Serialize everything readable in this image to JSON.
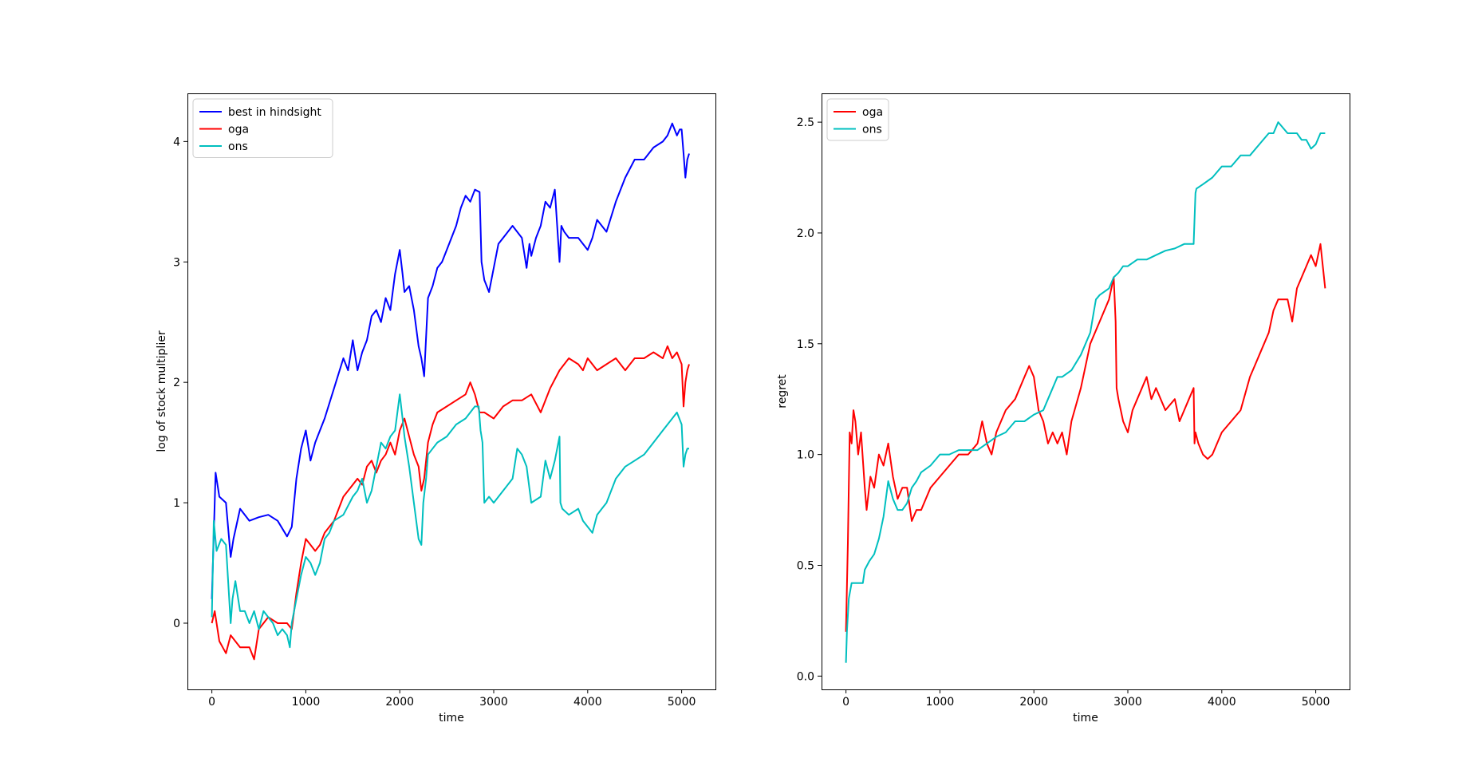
{
  "chart_data": [
    {
      "type": "line",
      "title": "",
      "xlabel": "time",
      "ylabel": "log of stock multiplier",
      "xlim": [
        -260,
        5360
      ],
      "ylim": [
        -0.55,
        4.4
      ],
      "xticks": [
        0,
        1000,
        2000,
        3000,
        4000,
        5000
      ],
      "xtick_labels": [
        "0",
        "1000",
        "2000",
        "3000",
        "4000",
        "5000"
      ],
      "yticks": [
        0,
        1,
        2,
        3,
        4
      ],
      "ytick_labels": [
        "0",
        "1",
        "2",
        "3",
        "4"
      ],
      "grid": false,
      "legend": "top-left",
      "series": [
        {
          "name": "best in hindsight",
          "color": "#0000ff",
          "x": [
            0,
            40,
            80,
            150,
            200,
            230,
            300,
            400,
            500,
            600,
            700,
            800,
            850,
            900,
            950,
            1000,
            1050,
            1100,
            1150,
            1200,
            1300,
            1400,
            1450,
            1500,
            1550,
            1600,
            1650,
            1700,
            1750,
            1800,
            1850,
            1900,
            1950,
            2000,
            2030,
            2050,
            2100,
            2150,
            2200,
            2230,
            2260,
            2300,
            2350,
            2400,
            2450,
            2500,
            2600,
            2650,
            2700,
            2750,
            2800,
            2850,
            2870,
            2880,
            2900,
            2950,
            3000,
            3050,
            3100,
            3200,
            3300,
            3350,
            3380,
            3400,
            3450,
            3500,
            3550,
            3600,
            3650,
            3700,
            3720,
            3750,
            3800,
            3900,
            4000,
            4050,
            4100,
            4150,
            4200,
            4300,
            4400,
            4500,
            4600,
            4700,
            4800,
            4850,
            4900,
            4950,
            4980,
            5000,
            5020,
            5040,
            5060,
            5080
          ],
          "values": [
            0.2,
            1.25,
            1.05,
            1.0,
            0.55,
            0.7,
            0.95,
            0.85,
            0.88,
            0.9,
            0.85,
            0.72,
            0.8,
            1.2,
            1.45,
            1.6,
            1.35,
            1.5,
            1.6,
            1.7,
            1.95,
            2.2,
            2.1,
            2.35,
            2.1,
            2.25,
            2.35,
            2.55,
            2.6,
            2.5,
            2.7,
            2.6,
            2.9,
            3.1,
            2.9,
            2.75,
            2.8,
            2.6,
            2.3,
            2.2,
            2.05,
            2.7,
            2.8,
            2.95,
            3.0,
            3.1,
            3.3,
            3.45,
            3.55,
            3.5,
            3.6,
            3.58,
            3.0,
            2.95,
            2.85,
            2.75,
            2.95,
            3.15,
            3.2,
            3.3,
            3.2,
            2.95,
            3.15,
            3.05,
            3.2,
            3.3,
            3.5,
            3.45,
            3.6,
            3.0,
            3.3,
            3.25,
            3.2,
            3.2,
            3.1,
            3.2,
            3.35,
            3.3,
            3.25,
            3.5,
            3.7,
            3.85,
            3.85,
            3.95,
            4.0,
            4.05,
            4.15,
            4.05,
            4.1,
            4.1,
            3.9,
            3.7,
            3.85,
            3.9
          ]
        },
        {
          "name": "oga",
          "color": "#ff0000",
          "x": [
            0,
            30,
            80,
            150,
            200,
            300,
            400,
            450,
            500,
            600,
            700,
            800,
            850,
            900,
            950,
            1000,
            1050,
            1100,
            1150,
            1200,
            1300,
            1400,
            1500,
            1550,
            1600,
            1650,
            1700,
            1750,
            1800,
            1850,
            1900,
            1950,
            2000,
            2050,
            2100,
            2150,
            2200,
            2230,
            2260,
            2300,
            2350,
            2400,
            2500,
            2600,
            2700,
            2750,
            2800,
            2850,
            2900,
            3000,
            3100,
            3200,
            3300,
            3400,
            3500,
            3550,
            3600,
            3700,
            3800,
            3900,
            3950,
            4000,
            4100,
            4200,
            4300,
            4400,
            4500,
            4600,
            4700,
            4800,
            4850,
            4900,
            4950,
            5000,
            5020,
            5040,
            5060,
            5080
          ],
          "values": [
            0.0,
            0.1,
            -0.15,
            -0.25,
            -0.1,
            -0.2,
            -0.2,
            -0.3,
            -0.05,
            0.05,
            0.0,
            0.0,
            -0.05,
            0.25,
            0.5,
            0.7,
            0.65,
            0.6,
            0.65,
            0.75,
            0.85,
            1.05,
            1.15,
            1.2,
            1.15,
            1.3,
            1.35,
            1.25,
            1.35,
            1.4,
            1.5,
            1.4,
            1.6,
            1.7,
            1.55,
            1.4,
            1.3,
            1.1,
            1.2,
            1.5,
            1.65,
            1.75,
            1.8,
            1.85,
            1.9,
            2.0,
            1.9,
            1.75,
            1.75,
            1.7,
            1.8,
            1.85,
            1.85,
            1.9,
            1.75,
            1.85,
            1.95,
            2.1,
            2.2,
            2.15,
            2.1,
            2.2,
            2.1,
            2.15,
            2.2,
            2.1,
            2.2,
            2.2,
            2.25,
            2.2,
            2.3,
            2.2,
            2.25,
            2.15,
            1.8,
            2.0,
            2.1,
            2.15
          ]
        },
        {
          "name": "ons",
          "color": "#00bfbf",
          "x": [
            0,
            20,
            50,
            100,
            150,
            200,
            220,
            250,
            300,
            350,
            400,
            450,
            500,
            550,
            600,
            650,
            700,
            750,
            800,
            830,
            850,
            900,
            950,
            1000,
            1050,
            1100,
            1150,
            1200,
            1250,
            1300,
            1400,
            1500,
            1550,
            1600,
            1650,
            1700,
            1750,
            1800,
            1850,
            1900,
            1950,
            2000,
            2030,
            2050,
            2100,
            2150,
            2200,
            2230,
            2250,
            2280,
            2300,
            2350,
            2400,
            2500,
            2600,
            2700,
            2750,
            2800,
            2840,
            2860,
            2880,
            2900,
            2950,
            3000,
            3100,
            3200,
            3250,
            3300,
            3350,
            3400,
            3500,
            3550,
            3600,
            3650,
            3700,
            3710,
            3730,
            3800,
            3900,
            3950,
            4000,
            4050,
            4100,
            4150,
            4200,
            4300,
            4400,
            4500,
            4600,
            4700,
            4800,
            4850,
            4900,
            4950,
            5000,
            5020,
            5040,
            5060,
            5080
          ],
          "values": [
            0.05,
            0.85,
            0.6,
            0.7,
            0.65,
            0.0,
            0.2,
            0.35,
            0.1,
            0.1,
            0.0,
            0.1,
            -0.05,
            0.1,
            0.05,
            0.0,
            -0.1,
            -0.05,
            -0.1,
            -0.2,
            0.0,
            0.2,
            0.4,
            0.55,
            0.5,
            0.4,
            0.5,
            0.7,
            0.75,
            0.85,
            0.9,
            1.05,
            1.1,
            1.2,
            1.0,
            1.1,
            1.3,
            1.5,
            1.45,
            1.55,
            1.6,
            1.9,
            1.7,
            1.55,
            1.3,
            1.0,
            0.7,
            0.65,
            1.0,
            1.2,
            1.4,
            1.45,
            1.5,
            1.55,
            1.65,
            1.7,
            1.75,
            1.8,
            1.8,
            1.6,
            1.5,
            1.0,
            1.05,
            1.0,
            1.1,
            1.2,
            1.45,
            1.4,
            1.3,
            1.0,
            1.05,
            1.35,
            1.2,
            1.35,
            1.55,
            1.0,
            0.95,
            0.9,
            0.95,
            0.85,
            0.8,
            0.75,
            0.9,
            0.95,
            1.0,
            1.2,
            1.3,
            1.35,
            1.4,
            1.5,
            1.6,
            1.65,
            1.7,
            1.75,
            1.65,
            1.3,
            1.4,
            1.45,
            1.45
          ]
        }
      ]
    },
    {
      "type": "line",
      "title": "",
      "xlabel": "time",
      "ylabel": "regret",
      "xlim": [
        -260,
        5360
      ],
      "ylim": [
        -0.06,
        2.63
      ],
      "xticks": [
        0,
        1000,
        2000,
        3000,
        4000,
        5000
      ],
      "xtick_labels": [
        "0",
        "1000",
        "2000",
        "3000",
        "4000",
        "5000"
      ],
      "yticks": [
        0.0,
        0.5,
        1.0,
        1.5,
        2.0,
        2.5
      ],
      "ytick_labels": [
        "0.0",
        "0.5",
        "1.0",
        "1.5",
        "2.0",
        "2.5"
      ],
      "grid": false,
      "legend": "top-left",
      "series": [
        {
          "name": "oga",
          "color": "#ff0000",
          "x": [
            0,
            20,
            40,
            60,
            80,
            100,
            130,
            160,
            200,
            220,
            260,
            300,
            350,
            400,
            450,
            500,
            550,
            600,
            650,
            700,
            750,
            800,
            900,
            1000,
            1100,
            1200,
            1300,
            1400,
            1450,
            1500,
            1550,
            1600,
            1700,
            1800,
            1900,
            1950,
            2000,
            2050,
            2100,
            2150,
            2200,
            2250,
            2300,
            2350,
            2400,
            2500,
            2600,
            2700,
            2800,
            2850,
            2870,
            2880,
            2900,
            2950,
            3000,
            3050,
            3100,
            3150,
            3200,
            3250,
            3300,
            3400,
            3500,
            3550,
            3600,
            3650,
            3700,
            3710,
            3720,
            3750,
            3800,
            3850,
            3900,
            4000,
            4100,
            4200,
            4300,
            4350,
            4400,
            4450,
            4500,
            4550,
            4600,
            4700,
            4750,
            4800,
            4850,
            4900,
            4950,
            5000,
            5050,
            5100
          ],
          "values": [
            0.2,
            0.6,
            1.1,
            1.05,
            1.2,
            1.15,
            1.0,
            1.1,
            0.85,
            0.75,
            0.9,
            0.85,
            1.0,
            0.95,
            1.05,
            0.9,
            0.8,
            0.85,
            0.85,
            0.7,
            0.75,
            0.75,
            0.85,
            0.9,
            0.95,
            1.0,
            1.0,
            1.05,
            1.15,
            1.05,
            1.0,
            1.1,
            1.2,
            1.25,
            1.35,
            1.4,
            1.35,
            1.2,
            1.15,
            1.05,
            1.1,
            1.05,
            1.1,
            1.0,
            1.15,
            1.3,
            1.5,
            1.6,
            1.7,
            1.8,
            1.6,
            1.3,
            1.25,
            1.15,
            1.1,
            1.2,
            1.25,
            1.3,
            1.35,
            1.25,
            1.3,
            1.2,
            1.25,
            1.15,
            1.2,
            1.25,
            1.3,
            1.05,
            1.1,
            1.05,
            1.0,
            0.98,
            1.0,
            1.1,
            1.15,
            1.2,
            1.35,
            1.4,
            1.45,
            1.5,
            1.55,
            1.65,
            1.7,
            1.7,
            1.6,
            1.75,
            1.8,
            1.85,
            1.9,
            1.85,
            1.95,
            1.75
          ]
        },
        {
          "name": "ons",
          "color": "#00bfbf",
          "x": [
            0,
            10,
            30,
            60,
            100,
            180,
            200,
            250,
            300,
            350,
            400,
            450,
            500,
            550,
            600,
            650,
            700,
            750,
            800,
            900,
            1000,
            1100,
            1200,
            1300,
            1400,
            1500,
            1600,
            1700,
            1800,
            1900,
            2000,
            2100,
            2150,
            2200,
            2250,
            2300,
            2400,
            2500,
            2600,
            2640,
            2660,
            2700,
            2800,
            2850,
            2900,
            2950,
            3000,
            3100,
            3200,
            3300,
            3400,
            3500,
            3600,
            3700,
            3720,
            3730,
            3800,
            3900,
            4000,
            4100,
            4200,
            4300,
            4400,
            4500,
            4550,
            4600,
            4700,
            4800,
            4850,
            4900,
            4950,
            5000,
            5050,
            5100
          ],
          "values": [
            0.06,
            0.2,
            0.35,
            0.42,
            0.42,
            0.42,
            0.48,
            0.52,
            0.55,
            0.62,
            0.72,
            0.88,
            0.8,
            0.75,
            0.75,
            0.78,
            0.85,
            0.88,
            0.92,
            0.95,
            1.0,
            1.0,
            1.02,
            1.02,
            1.02,
            1.05,
            1.08,
            1.1,
            1.15,
            1.15,
            1.18,
            1.2,
            1.25,
            1.3,
            1.35,
            1.35,
            1.38,
            1.45,
            1.55,
            1.65,
            1.7,
            1.72,
            1.75,
            1.8,
            1.82,
            1.85,
            1.85,
            1.88,
            1.88,
            1.9,
            1.92,
            1.93,
            1.95,
            1.95,
            2.18,
            2.2,
            2.22,
            2.25,
            2.3,
            2.3,
            2.35,
            2.35,
            2.4,
            2.45,
            2.45,
            2.5,
            2.45,
            2.45,
            2.42,
            2.42,
            2.38,
            2.4,
            2.45,
            2.45
          ]
        }
      ]
    }
  ]
}
